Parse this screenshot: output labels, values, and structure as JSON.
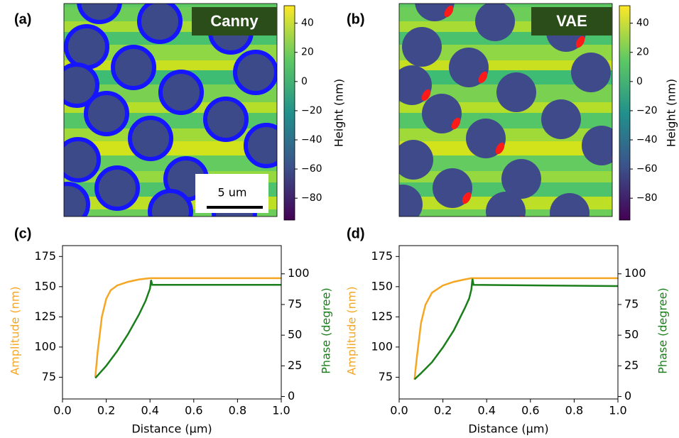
{
  "chart_data": [
    {
      "type": "image",
      "panel_label": "(a)",
      "annotation": "Canny",
      "scale_bar": "5 um",
      "colorbar": {
        "label": "Height (nm)",
        "clim": [
          -95,
          52
        ],
        "ticks": [
          {
            "value": -80,
            "label": "−80"
          },
          {
            "value": -60,
            "label": "−60"
          },
          {
            "value": -40,
            "label": "−40"
          },
          {
            "value": -20,
            "label": "−20"
          },
          0,
          20,
          40
        ]
      }
    },
    {
      "type": "image",
      "panel_label": "(b)",
      "annotation": "VAE",
      "colorbar": {
        "label": "Height (nm)",
        "clim": [
          -95,
          52
        ],
        "ticks": [
          {
            "value": -80,
            "label": "−80"
          },
          {
            "value": -60,
            "label": "−60"
          },
          {
            "value": -40,
            "label": "−40"
          },
          {
            "value": -20,
            "label": "−20"
          },
          0,
          20,
          40
        ]
      }
    },
    {
      "type": "line",
      "panel_label": "(c)",
      "xlabel": "Distance (μm)",
      "ylabel": "Amplitude (nm)",
      "y2label": "Phase (degree)",
      "xlim": [
        0,
        1
      ],
      "xticks": [
        {
          "value": 0,
          "label": "0.0"
        },
        0.2,
        0.4,
        0.6,
        0.8,
        {
          "value": 1,
          "label": "1.0"
        }
      ],
      "ylim": [
        57,
        184
      ],
      "yticks": [
        75,
        100,
        125,
        150,
        175
      ],
      "y2lim": [
        -2,
        123
      ],
      "y2ticks": [
        0,
        25,
        50,
        75,
        100
      ],
      "series": [
        {
          "color": "#f5a623",
          "x": [
            0.15,
            0.16,
            0.18,
            0.2,
            0.22,
            0.25,
            0.3,
            0.35,
            0.4,
            1.0
          ],
          "values": [
            75,
            95,
            125,
            140,
            147,
            151,
            154,
            156,
            157,
            157
          ]
        },
        {
          "color": "#1a7f1a",
          "axis": "y2",
          "x": [
            0.15,
            0.2,
            0.25,
            0.3,
            0.35,
            0.38,
            0.4,
            0.405,
            0.41,
            1.0
          ],
          "values": [
            15,
            25,
            37,
            51,
            67,
            78,
            88,
            95,
            91,
            91
          ]
        }
      ]
    },
    {
      "type": "line",
      "panel_label": "(d)",
      "xlabel": "Distance (μm)",
      "ylabel": "Amplitude (nm)",
      "y2label": "Phase (degree)",
      "xlim": [
        0,
        1
      ],
      "xticks": [
        {
          "value": 0,
          "label": "0.0"
        },
        0.2,
        0.4,
        0.6,
        0.8,
        {
          "value": 1,
          "label": "1.0"
        }
      ],
      "ylim": [
        57,
        184
      ],
      "yticks": [
        75,
        100,
        125,
        150,
        175
      ],
      "y2lim": [
        -2,
        123
      ],
      "y2ticks": [
        0,
        25,
        50,
        75,
        100
      ],
      "series": [
        {
          "color": "#f5a623",
          "x": [
            0.07,
            0.08,
            0.1,
            0.12,
            0.15,
            0.2,
            0.25,
            0.3,
            0.33,
            1.0
          ],
          "values": [
            73,
            90,
            120,
            135,
            145,
            151,
            154,
            156,
            157,
            157
          ]
        },
        {
          "color": "#1a7f1a",
          "axis": "y2",
          "x": [
            0.07,
            0.1,
            0.15,
            0.2,
            0.25,
            0.3,
            0.32,
            0.33,
            0.335,
            0.34,
            1.0
          ],
          "values": [
            14,
            19,
            28,
            40,
            54,
            72,
            80,
            87,
            96,
            91,
            90
          ]
        }
      ]
    }
  ]
}
